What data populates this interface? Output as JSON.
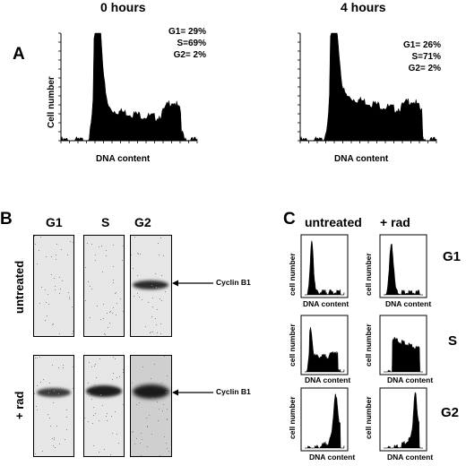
{
  "panelA": {
    "letter": "A",
    "plots": [
      {
        "title": "0 hours",
        "stats": [
          "G1= 29%",
          "S=69%",
          "G2=  2%"
        ],
        "ylabel": "Cell number",
        "xlabel": "DNA content",
        "distribution": {
          "G1": 29,
          "S": 69,
          "G2": 2
        }
      },
      {
        "title": "4 hours",
        "stats": [
          "G1= 26%",
          "S=71%",
          "G2=  2%"
        ],
        "ylabel": "",
        "xlabel": "DNA content",
        "distribution": {
          "G1": 26,
          "S": 71,
          "G2": 2
        }
      }
    ]
  },
  "panelB": {
    "letter": "B",
    "columns": [
      "G1",
      "S",
      "G2"
    ],
    "rows": [
      "untreated",
      "+ rad"
    ],
    "band_label": "Cyclin B1"
  },
  "panelC": {
    "letter": "C",
    "columns": [
      "untreated",
      "+ rad"
    ],
    "rows": [
      "G1",
      "S",
      "G2"
    ],
    "ylabel": "cell number",
    "xlabel": "DNA content"
  }
}
